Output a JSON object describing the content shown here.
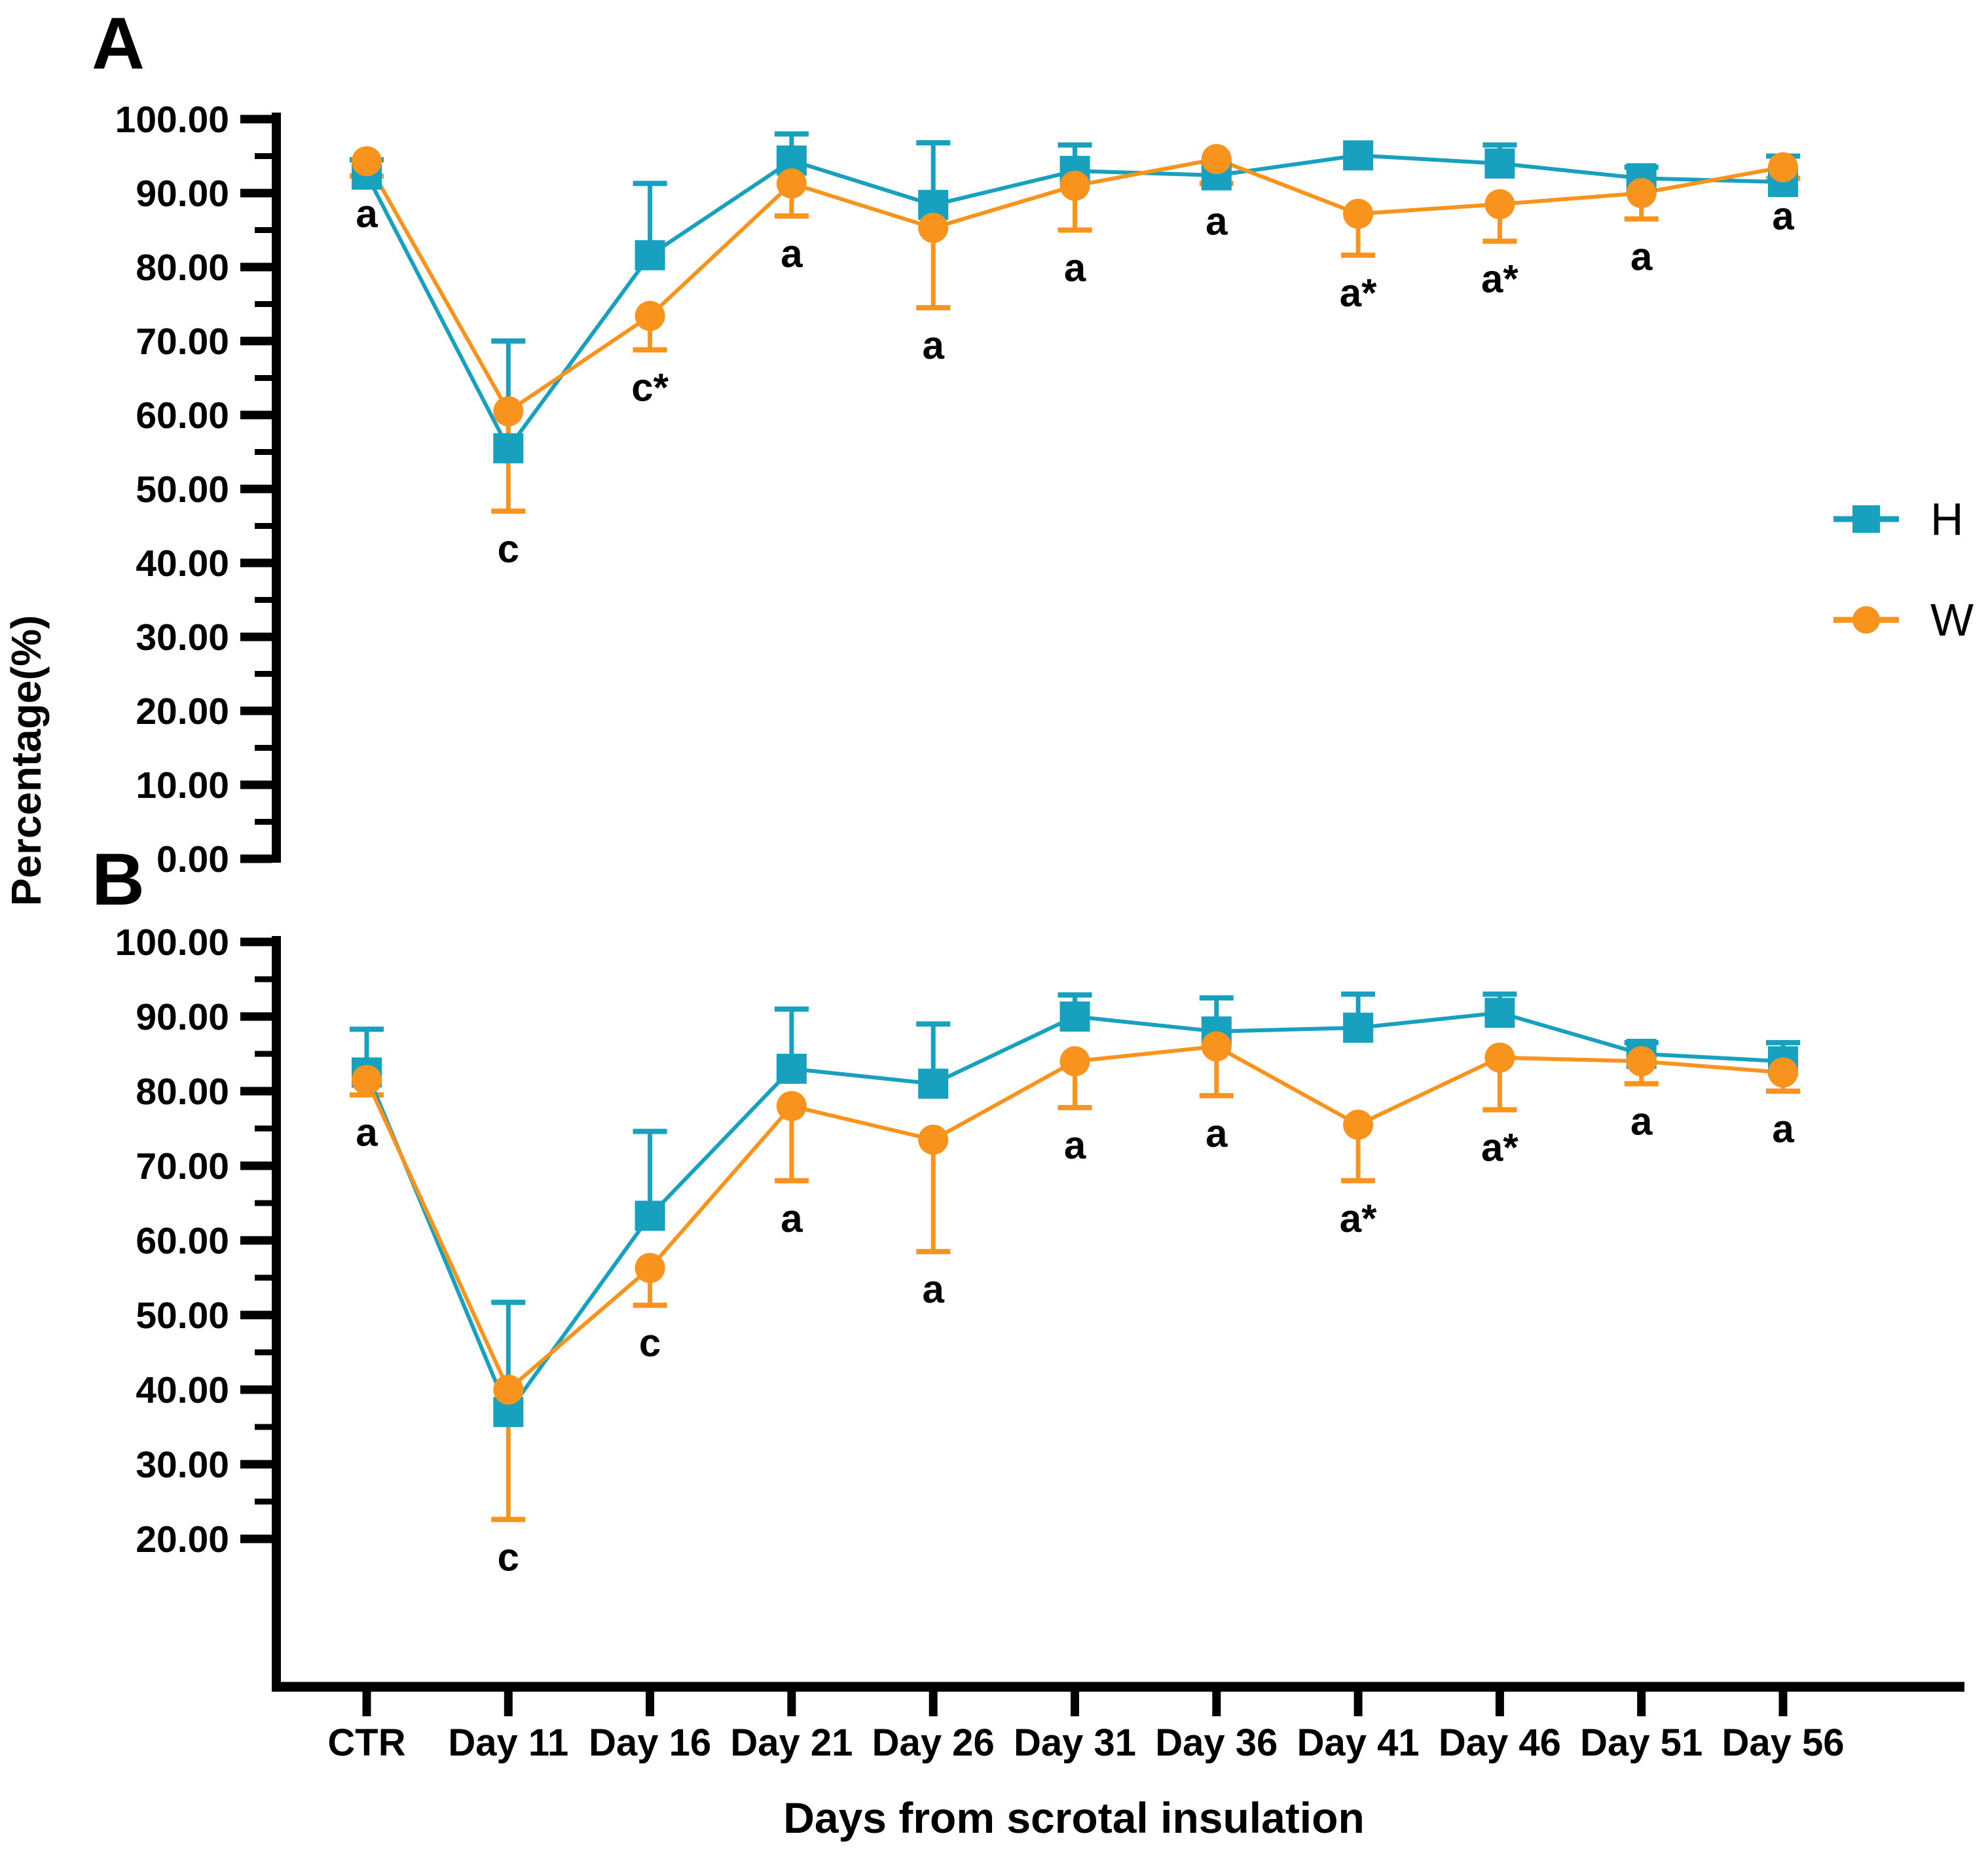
{
  "figure": {
    "panel_a_letter": "A",
    "panel_b_letter": "B",
    "background": "#ffffff"
  },
  "axes": {
    "y_title": "Percentage(%)",
    "x_title": "Days from scrotal insulation",
    "categories": [
      "CTR",
      "Day 11",
      "Day 16",
      "Day 21",
      "Day 26",
      "Day 31",
      "Day 36",
      "Day 41",
      "Day 46",
      "Day 51",
      "Day 56"
    ]
  },
  "legend": {
    "items": [
      {
        "label": "H",
        "color": "#18A1BF",
        "marker": "square"
      },
      {
        "label": "W",
        "color": "#F8941E",
        "marker": "circle"
      }
    ]
  },
  "chart_data": [
    {
      "type": "line",
      "panel": "A",
      "ylabel": "Percentage(%)",
      "ylim": [
        0,
        100
      ],
      "ytick_labels": [
        "100.00",
        "90.00",
        "80.00",
        "70.00",
        "60.00",
        "50.00",
        "40.00",
        "30.00",
        "20.00",
        "10.00",
        "0.00"
      ],
      "ytick_values": [
        100,
        90,
        80,
        70,
        60,
        50,
        40,
        30,
        20,
        10,
        0
      ],
      "grid": false,
      "legend_position": "right",
      "categories": [
        "CTR",
        "Day 11",
        "Day 16",
        "Day 21",
        "Day 26",
        "Day 31",
        "Day 36",
        "Day 41",
        "Day 46",
        "Day 51",
        "Day 56"
      ],
      "series": [
        {
          "name": "H",
          "color": "#18A1BF",
          "marker": "square",
          "values": [
            92.5,
            55.5,
            81.6,
            94.4,
            88.4,
            93.0,
            92.4,
            95.1,
            94.0,
            92.0,
            91.5
          ],
          "err_up": [
            2.0,
            14.5,
            9.7,
            3.6,
            8.4,
            3.5,
            0,
            0,
            2.5,
            1.5,
            3.5
          ],
          "err_down": [
            0,
            0,
            0,
            0,
            0,
            0,
            0,
            0,
            0,
            0,
            0
          ]
        },
        {
          "name": "W",
          "color": "#F8941E",
          "marker": "circle",
          "values": [
            94.3,
            60.5,
            73.4,
            91.3,
            85.3,
            91.0,
            94.6,
            87.2,
            88.5,
            90.0,
            93.5
          ],
          "err_up": [
            0,
            0,
            0,
            0,
            0,
            0,
            0,
            0,
            0,
            0,
            0
          ],
          "err_down": [
            2.0,
            13.5,
            4.6,
            4.4,
            10.8,
            6.0,
            3.3,
            5.6,
            5.0,
            3.5,
            1.5
          ]
        }
      ],
      "point_labels": [
        "a",
        "c",
        "c*",
        "a",
        "a",
        "a",
        "a",
        "a*",
        "a*",
        "a",
        "a"
      ]
    },
    {
      "type": "line",
      "panel": "B",
      "ylabel": "Percentage(%)",
      "ylim": [
        0,
        100
      ],
      "ytick_labels": [
        "100.00",
        "90.00",
        "80.00",
        "70.00",
        "60.00",
        "50.00",
        "40.00",
        "30.00",
        "20.00"
      ],
      "ytick_values": [
        100,
        90,
        80,
        70,
        60,
        50,
        40,
        30,
        20
      ],
      "grid": false,
      "legend_position": "none",
      "categories": [
        "CTR",
        "Day 11",
        "Day 16",
        "Day 21",
        "Day 26",
        "Day 31",
        "Day 36",
        "Day 41",
        "Day 46",
        "Day 51",
        "Day 56"
      ],
      "series": [
        {
          "name": "H",
          "color": "#18A1BF",
          "marker": "square",
          "values": [
            82.5,
            37.0,
            63.3,
            83.0,
            81.0,
            90.0,
            88.0,
            88.5,
            90.5,
            85.0,
            84.0
          ],
          "err_up": [
            5.8,
            14.7,
            11.3,
            8.0,
            8.0,
            2.9,
            4.5,
            4.5,
            2.5,
            1.5,
            2.5
          ],
          "err_down": [
            0,
            0,
            0,
            0,
            0,
            0,
            0,
            0,
            0,
            0,
            0
          ]
        },
        {
          "name": "W",
          "color": "#F8941E",
          "marker": "circle",
          "values": [
            81.5,
            40.0,
            56.3,
            78.0,
            73.5,
            84.0,
            86.0,
            75.5,
            84.5,
            84.0,
            82.5
          ],
          "err_up": [
            0,
            0,
            0,
            0,
            0,
            0,
            0,
            0,
            0,
            0,
            0
          ],
          "err_down": [
            2.0,
            17.4,
            5.0,
            10.0,
            15.0,
            6.2,
            6.6,
            7.5,
            7.0,
            3.0,
            2.5
          ]
        }
      ],
      "point_labels": [
        "a",
        "c",
        "c",
        "a",
        "a",
        "a",
        "a",
        "a*",
        "a*",
        "a",
        "a"
      ]
    }
  ]
}
